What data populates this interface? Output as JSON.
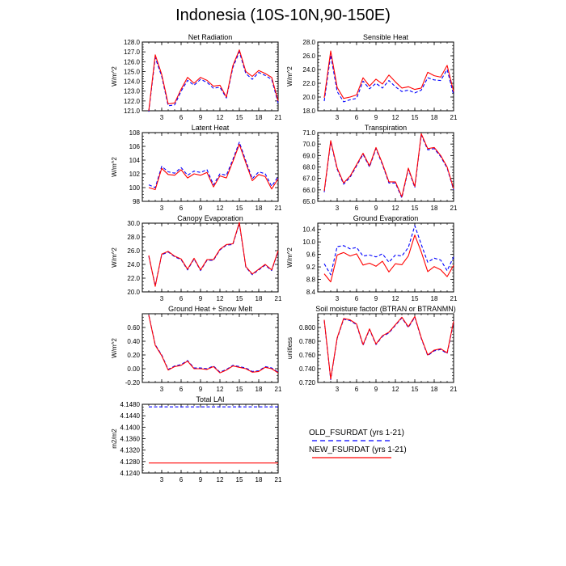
{
  "figure": {
    "title": "Indonesia (10S-10N,90-150E)"
  },
  "legend": {
    "entries": [
      {
        "name": "OLD_FSURDAT (yrs 1-21)",
        "color": "#0000ff",
        "dash": "dashed"
      },
      {
        "name": "NEW_FSURDAT (yrs 1-21)",
        "color": "#ff0000",
        "dash": "solid"
      }
    ]
  },
  "chart_data": [
    {
      "type": "line",
      "title": "Net Radiation",
      "ylabel": "W/m^2",
      "xlim": [
        0,
        21
      ],
      "xticks": [
        "3",
        "6",
        "9",
        "12",
        "15",
        "18",
        "21"
      ],
      "ylim": [
        121.0,
        128.0
      ],
      "yticks": [
        "121.0",
        "122.0",
        "123.0",
        "124.0",
        "125.0",
        "126.0",
        "127.0",
        "128.0"
      ],
      "x": [
        1,
        2,
        3,
        4,
        5,
        6,
        7,
        8,
        9,
        10,
        11,
        12,
        13,
        14,
        15,
        16,
        17,
        18,
        19,
        20,
        21
      ],
      "series": [
        {
          "name": "OLD_FSURDAT (yrs 1-21)",
          "color": "#0000ff",
          "dash": "dashed",
          "values": [
            120.9,
            126.4,
            124.5,
            121.5,
            121.6,
            123.0,
            124.1,
            123.6,
            124.2,
            123.9,
            123.3,
            123.4,
            122.3,
            125.4,
            127.0,
            124.8,
            124.2,
            124.9,
            124.6,
            124.2,
            121.8
          ]
        },
        {
          "name": "NEW_FSURDAT (yrs 1-21)",
          "color": "#ff0000",
          "dash": "solid",
          "values": [
            121.0,
            126.7,
            124.7,
            121.7,
            121.8,
            123.2,
            124.4,
            123.8,
            124.4,
            124.1,
            123.5,
            123.6,
            122.4,
            125.6,
            127.2,
            125.0,
            124.5,
            125.1,
            124.8,
            124.4,
            122.0
          ]
        }
      ]
    },
    {
      "type": "line",
      "title": "Sensible Heat",
      "ylabel": "W/m^2",
      "xlim": [
        0,
        21
      ],
      "xticks": [
        "3",
        "6",
        "9",
        "12",
        "15",
        "18",
        "21"
      ],
      "ylim": [
        18.0,
        28.0
      ],
      "yticks": [
        "18.0",
        "20.0",
        "22.0",
        "24.0",
        "26.0",
        "28.0"
      ],
      "x": [
        1,
        2,
        3,
        4,
        5,
        6,
        7,
        8,
        9,
        10,
        11,
        12,
        13,
        14,
        15,
        16,
        17,
        18,
        19,
        20,
        21
      ],
      "series": [
        {
          "name": "OLD_FSURDAT (yrs 1-21)",
          "color": "#0000ff",
          "dash": "dashed",
          "values": [
            19.4,
            26.1,
            20.8,
            19.3,
            19.6,
            19.8,
            22.3,
            21.2,
            22.0,
            21.3,
            22.4,
            21.5,
            20.8,
            21.0,
            20.6,
            21.0,
            22.8,
            22.5,
            22.4,
            24.0,
            20.3
          ]
        },
        {
          "name": "NEW_FSURDAT (yrs 1-21)",
          "color": "#ff0000",
          "dash": "solid",
          "values": [
            19.9,
            26.7,
            21.4,
            19.8,
            20.0,
            20.3,
            22.8,
            21.6,
            22.6,
            21.9,
            23.2,
            22.2,
            21.3,
            21.5,
            21.1,
            21.3,
            23.6,
            23.1,
            22.9,
            24.6,
            20.8
          ]
        }
      ]
    },
    {
      "type": "line",
      "title": "Latent Heat",
      "ylabel": "W/m^2",
      "xlim": [
        0,
        21
      ],
      "xticks": [
        "3",
        "6",
        "9",
        "12",
        "15",
        "18",
        "21"
      ],
      "ylim": [
        98,
        108
      ],
      "yticks": [
        "98",
        "100",
        "102",
        "104",
        "106",
        "108"
      ],
      "x": [
        1,
        2,
        3,
        4,
        5,
        6,
        7,
        8,
        9,
        10,
        11,
        12,
        13,
        14,
        15,
        16,
        17,
        18,
        19,
        20,
        21
      ],
      "series": [
        {
          "name": "OLD_FSURDAT (yrs 1-21)",
          "color": "#0000ff",
          "dash": "dashed",
          "values": [
            100.4,
            100.0,
            103.1,
            102.3,
            102.1,
            102.9,
            101.8,
            102.4,
            102.2,
            102.6,
            100.4,
            102.0,
            101.8,
            104.1,
            106.6,
            103.9,
            101.3,
            102.3,
            102.0,
            100.2,
            101.6
          ]
        },
        {
          "name": "NEW_FSURDAT (yrs 1-21)",
          "color": "#ff0000",
          "dash": "solid",
          "values": [
            100.0,
            99.7,
            102.8,
            101.9,
            101.8,
            102.6,
            101.4,
            102.0,
            101.8,
            102.2,
            100.1,
            101.7,
            101.4,
            103.8,
            106.3,
            103.6,
            101.0,
            101.9,
            101.6,
            99.8,
            101.3
          ]
        }
      ]
    },
    {
      "type": "line",
      "title": "Transpiration",
      "ylabel": "",
      "xlim": [
        0,
        21
      ],
      "xticks": [
        "3",
        "6",
        "9",
        "12",
        "15",
        "18",
        "21"
      ],
      "ylim": [
        65.0,
        71.0
      ],
      "yticks": [
        "65.0",
        "66.0",
        "67.0",
        "68.0",
        "69.0",
        "70.0",
        "71.0"
      ],
      "x": [
        1,
        2,
        3,
        4,
        5,
        6,
        7,
        8,
        9,
        10,
        11,
        12,
        13,
        14,
        15,
        16,
        17,
        18,
        19,
        20,
        21
      ],
      "series": [
        {
          "name": "OLD_FSURDAT (yrs 1-21)",
          "color": "#0000ff",
          "dash": "dashed",
          "values": [
            65.8,
            70.2,
            67.8,
            66.5,
            67.1,
            68.1,
            69.1,
            68.0,
            69.6,
            68.2,
            66.6,
            66.6,
            65.3,
            67.8,
            66.2,
            70.8,
            69.5,
            69.6,
            68.9,
            67.9,
            66.0
          ]
        },
        {
          "name": "NEW_FSURDAT (yrs 1-21)",
          "color": "#ff0000",
          "dash": "solid",
          "values": [
            65.9,
            70.3,
            67.9,
            66.6,
            67.2,
            68.2,
            69.2,
            68.1,
            69.7,
            68.3,
            66.7,
            66.7,
            65.4,
            67.9,
            66.3,
            70.9,
            69.6,
            69.7,
            69.0,
            68.0,
            66.1
          ]
        }
      ]
    },
    {
      "type": "line",
      "title": "Canopy Evaporation",
      "ylabel": "W/m^2",
      "xlim": [
        0,
        21
      ],
      "xticks": [
        "3",
        "6",
        "9",
        "12",
        "15",
        "18",
        "21"
      ],
      "ylim": [
        20.0,
        30.0
      ],
      "yticks": [
        "20.0",
        "22.0",
        "24.0",
        "26.0",
        "28.0",
        "30.0"
      ],
      "x": [
        1,
        2,
        3,
        4,
        5,
        6,
        7,
        8,
        9,
        10,
        11,
        12,
        13,
        14,
        15,
        16,
        17,
        18,
        19,
        20,
        21
      ],
      "series": [
        {
          "name": "OLD_FSURDAT (yrs 1-21)",
          "color": "#0000ff",
          "dash": "dashed",
          "values": [
            25.2,
            20.9,
            25.4,
            25.8,
            25.1,
            24.7,
            23.2,
            24.8,
            23.1,
            24.6,
            24.6,
            26.1,
            26.8,
            26.9,
            30.0,
            23.6,
            22.5,
            23.2,
            23.9,
            23.1,
            25.9
          ]
        },
        {
          "name": "NEW_FSURDAT (yrs 1-21)",
          "color": "#ff0000",
          "dash": "solid",
          "values": [
            25.3,
            20.8,
            25.5,
            25.9,
            25.2,
            24.8,
            23.3,
            24.9,
            23.2,
            24.7,
            24.7,
            26.2,
            26.9,
            27.0,
            30.1,
            23.7,
            22.6,
            23.3,
            24.0,
            23.2,
            26.0
          ]
        }
      ]
    },
    {
      "type": "line",
      "title": "Ground Evaporation",
      "ylabel": "W/m^2",
      "xlim": [
        0,
        21
      ],
      "xticks": [
        "3",
        "6",
        "9",
        "12",
        "15",
        "18",
        "21"
      ],
      "ylim": [
        8.4,
        10.6
      ],
      "yticks": [
        "8.4",
        "8.8",
        "9.2",
        "9.6",
        "10.0",
        "10.4"
      ],
      "x": [
        1,
        2,
        3,
        4,
        5,
        6,
        7,
        8,
        9,
        10,
        11,
        12,
        13,
        14,
        15,
        16,
        17,
        18,
        19,
        20,
        21
      ],
      "series": [
        {
          "name": "OLD_FSURDAT (yrs 1-21)",
          "color": "#0000ff",
          "dash": "dashed",
          "values": [
            9.3,
            8.95,
            9.85,
            9.88,
            9.78,
            9.82,
            9.55,
            9.58,
            9.52,
            9.62,
            9.35,
            9.58,
            9.55,
            9.82,
            10.52,
            9.92,
            9.35,
            9.48,
            9.42,
            9.08,
            9.52
          ]
        },
        {
          "name": "NEW_FSURDAT (yrs 1-21)",
          "color": "#ff0000",
          "dash": "solid",
          "values": [
            8.98,
            8.72,
            9.58,
            9.66,
            9.55,
            9.62,
            9.26,
            9.32,
            9.22,
            9.38,
            9.04,
            9.3,
            9.27,
            9.55,
            10.22,
            9.68,
            9.05,
            9.21,
            9.11,
            8.89,
            9.25
          ]
        }
      ]
    },
    {
      "type": "line",
      "title": "Ground Heat + Snow Melt",
      "ylabel": "W/m^2",
      "xlim": [
        0,
        21
      ],
      "xticks": [
        "3",
        "6",
        "9",
        "12",
        "15",
        "18",
        "21"
      ],
      "ylim": [
        -0.2,
        0.8
      ],
      "yticks": [
        "-0.20",
        "0.00",
        "0.20",
        "0.40",
        "0.60"
      ],
      "x": [
        1,
        2,
        3,
        4,
        5,
        6,
        7,
        8,
        9,
        10,
        11,
        12,
        13,
        14,
        15,
        16,
        17,
        18,
        19,
        20,
        21
      ],
      "series": [
        {
          "name": "OLD_FSURDAT (yrs 1-21)",
          "color": "#0000ff",
          "dash": "dashed",
          "values": [
            0.78,
            0.35,
            0.2,
            -0.01,
            0.04,
            0.06,
            0.12,
            0.01,
            0.01,
            0.0,
            0.04,
            -0.05,
            -0.01,
            0.05,
            0.03,
            0.01,
            -0.04,
            -0.03,
            0.03,
            0.01,
            -0.05
          ]
        },
        {
          "name": "NEW_FSURDAT (yrs 1-21)",
          "color": "#ff0000",
          "dash": "solid",
          "values": [
            0.78,
            0.34,
            0.19,
            -0.02,
            0.03,
            0.05,
            0.11,
            0.0,
            0.0,
            -0.01,
            0.03,
            -0.06,
            -0.02,
            0.04,
            0.02,
            0.0,
            -0.05,
            -0.04,
            0.02,
            0.0,
            -0.06
          ]
        }
      ]
    },
    {
      "type": "line",
      "title": "Soil moisture factor (BTRAN or BTRANMN)",
      "ylabel": "unitless",
      "xlim": [
        0,
        21
      ],
      "xticks": [
        "3",
        "6",
        "9",
        "12",
        "15",
        "18",
        "21"
      ],
      "ylim": [
        0.72,
        0.82
      ],
      "yticks": [
        "0.720",
        "0.740",
        "0.760",
        "0.780",
        "0.800"
      ],
      "x": [
        1,
        2,
        3,
        4,
        5,
        6,
        7,
        8,
        9,
        10,
        11,
        12,
        13,
        14,
        15,
        16,
        17,
        18,
        19,
        20,
        21
      ],
      "series": [
        {
          "name": "OLD_FSURDAT (yrs 1-21)",
          "color": "#0000ff",
          "dash": "dashed",
          "values": [
            0.81,
            0.724,
            0.784,
            0.812,
            0.81,
            0.804,
            0.774,
            0.797,
            0.775,
            0.787,
            0.792,
            0.803,
            0.814,
            0.8,
            0.815,
            0.784,
            0.759,
            0.766,
            0.768,
            0.762,
            0.808
          ]
        },
        {
          "name": "NEW_FSURDAT (yrs 1-21)",
          "color": "#ff0000",
          "dash": "solid",
          "values": [
            0.811,
            0.725,
            0.785,
            0.813,
            0.811,
            0.805,
            0.775,
            0.798,
            0.776,
            0.788,
            0.793,
            0.804,
            0.815,
            0.801,
            0.816,
            0.785,
            0.76,
            0.767,
            0.769,
            0.763,
            0.809
          ]
        }
      ]
    },
    {
      "type": "line",
      "title": "Total LAI",
      "ylabel": "m2/m2",
      "xlim": [
        0,
        21
      ],
      "xticks": [
        "3",
        "6",
        "9",
        "12",
        "15",
        "18",
        "21"
      ],
      "ylim": [
        4.124,
        4.148
      ],
      "yticks": [
        "4.1240",
        "4.1280",
        "4.1320",
        "4.1360",
        "4.1400",
        "4.1440",
        "4.1480"
      ],
      "x": [
        1,
        2,
        3,
        4,
        5,
        6,
        7,
        8,
        9,
        10,
        11,
        12,
        13,
        14,
        15,
        16,
        17,
        18,
        19,
        20,
        21
      ],
      "series": [
        {
          "name": "OLD_FSURDAT (yrs 1-21)",
          "color": "#0000ff",
          "dash": "dashed",
          "values": [
            4.1471,
            4.1471,
            4.1471,
            4.1471,
            4.1471,
            4.1471,
            4.1471,
            4.1471,
            4.1471,
            4.1471,
            4.1471,
            4.1471,
            4.1471,
            4.1471,
            4.1471,
            4.1471,
            4.1471,
            4.1471,
            4.1471,
            4.1471,
            4.1471
          ]
        },
        {
          "name": "NEW_FSURDAT (yrs 1-21)",
          "color": "#ff0000",
          "dash": "solid",
          "values": [
            4.1275,
            4.1275,
            4.1275,
            4.1275,
            4.1275,
            4.1275,
            4.1275,
            4.1275,
            4.1275,
            4.1275,
            4.1275,
            4.1275,
            4.1275,
            4.1275,
            4.1275,
            4.1275,
            4.1275,
            4.1275,
            4.1275,
            4.1275,
            4.1275
          ]
        }
      ]
    }
  ]
}
